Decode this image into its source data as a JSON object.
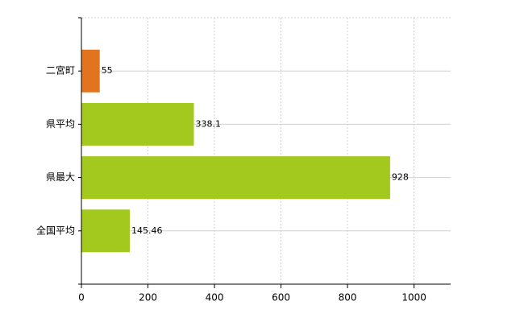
{
  "chart_data": {
    "type": "bar",
    "orientation": "horizontal",
    "categories": [
      "二宮町",
      "県平均",
      "県最大",
      "全国平均"
    ],
    "values": [
      55,
      338.1,
      928,
      145.46
    ],
    "colors": [
      "#e2731f",
      "#a3c91e",
      "#a3c91e",
      "#a3c91e"
    ],
    "xlim": [
      0,
      1110
    ],
    "xticks": [
      0,
      200,
      400,
      600,
      800,
      1000
    ],
    "grid": true
  }
}
